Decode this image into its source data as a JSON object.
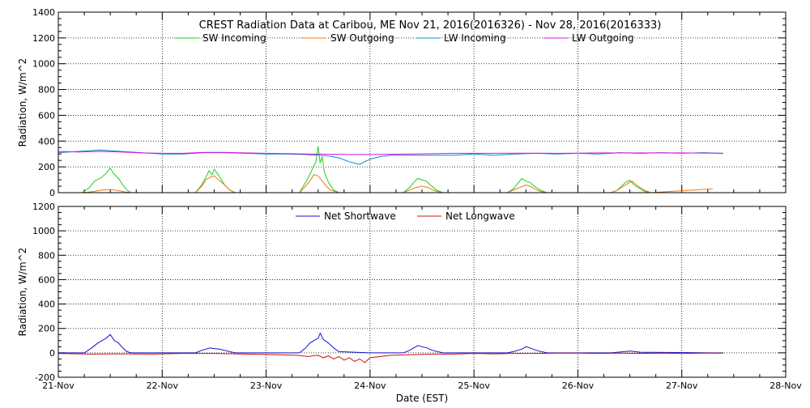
{
  "chart_data": [
    {
      "type": "line",
      "title": "CREST Radiation Data at Caribou, ME   Nov 21, 2016(2016326) - Nov 28, 2016(2016333)",
      "ylabel": "Radiation, W/m^2",
      "xlabel": "",
      "ylim": [
        0,
        1400
      ],
      "yticks": [
        0,
        200,
        400,
        600,
        800,
        1000,
        1200,
        1400
      ],
      "xlim": [
        0,
        7
      ],
      "x_tick_labels": [
        "21-Nov",
        "22-Nov",
        "23-Nov",
        "24-Nov",
        "25-Nov",
        "26-Nov",
        "27-Nov",
        "28-Nov"
      ],
      "grid": true,
      "legend_placement": "top",
      "series": [
        {
          "name": "SW Incoming",
          "color": "#22cc22",
          "x": [
            0.23,
            0.3,
            0.35,
            0.42,
            0.47,
            0.5,
            0.53,
            0.58,
            0.62,
            0.66,
            0.7,
            1.32,
            1.38,
            1.42,
            1.45,
            1.48,
            1.5,
            1.53,
            1.57,
            1.6,
            1.65,
            1.7,
            2.32,
            2.38,
            2.42,
            2.46,
            2.48,
            2.5,
            2.52,
            2.54,
            2.56,
            2.6,
            2.65,
            2.7,
            3.32,
            3.38,
            3.42,
            3.46,
            3.5,
            3.54,
            3.58,
            3.64,
            3.7,
            4.32,
            4.38,
            4.42,
            4.46,
            4.5,
            4.54,
            4.58,
            4.64,
            4.7,
            5.32,
            5.38,
            5.42,
            5.46,
            5.5,
            5.54,
            5.58,
            5.64,
            5.7
          ],
          "y": [
            0,
            40,
            90,
            120,
            160,
            190,
            150,
            110,
            60,
            20,
            0,
            0,
            60,
            120,
            170,
            140,
            180,
            150,
            100,
            60,
            20,
            0,
            0,
            80,
            140,
            210,
            240,
            360,
            230,
            280,
            160,
            80,
            20,
            0,
            0,
            40,
            80,
            110,
            100,
            90,
            60,
            20,
            0,
            0,
            30,
            70,
            110,
            90,
            80,
            50,
            20,
            0,
            0,
            20,
            50,
            80,
            95,
            60,
            40,
            10,
            0
          ]
        },
        {
          "name": "SW Outgoing",
          "color": "#ee7711",
          "x": [
            0.25,
            0.35,
            0.42,
            0.5,
            0.58,
            0.65,
            0.7,
            1.32,
            1.38,
            1.42,
            1.46,
            1.5,
            1.54,
            1.6,
            1.65,
            1.7,
            2.32,
            2.38,
            2.42,
            2.46,
            2.5,
            2.54,
            2.58,
            2.62,
            2.7,
            3.32,
            3.38,
            3.44,
            3.5,
            3.56,
            3.62,
            3.7,
            4.32,
            4.38,
            4.44,
            4.5,
            4.56,
            4.62,
            4.7,
            5.32,
            5.38,
            5.44,
            5.48,
            5.52,
            5.58,
            5.64,
            5.7,
            6.3
          ],
          "y": [
            0,
            10,
            20,
            25,
            15,
            5,
            0,
            0,
            50,
            100,
            120,
            130,
            100,
            60,
            20,
            0,
            0,
            50,
            90,
            140,
            130,
            90,
            50,
            20,
            0,
            0,
            20,
            40,
            50,
            40,
            15,
            0,
            0,
            20,
            40,
            60,
            40,
            15,
            0,
            0,
            20,
            50,
            70,
            90,
            50,
            20,
            0,
            30
          ]
        },
        {
          "name": "LW Incoming",
          "color": "#1188cc",
          "x": [
            0,
            0.2,
            0.4,
            0.6,
            0.8,
            1.0,
            1.2,
            1.4,
            1.6,
            1.8,
            2.0,
            2.2,
            2.4,
            2.5,
            2.6,
            2.7,
            2.8,
            2.9,
            3.0,
            3.1,
            3.2,
            3.4,
            3.6,
            3.8,
            4.0,
            4.2,
            4.4,
            4.6,
            4.8,
            5.0,
            5.2,
            5.4,
            5.6,
            5.8,
            6.0,
            6.2,
            6.4
          ],
          "y": [
            310,
            320,
            330,
            320,
            310,
            300,
            300,
            310,
            310,
            305,
            300,
            300,
            295,
            290,
            285,
            270,
            240,
            220,
            260,
            280,
            290,
            290,
            290,
            290,
            300,
            290,
            300,
            305,
            300,
            305,
            300,
            310,
            305,
            310,
            305,
            310,
            305
          ]
        },
        {
          "name": "LW Outgoing",
          "color": "#dd11dd",
          "x": [
            0,
            0.2,
            0.4,
            0.6,
            0.8,
            1.0,
            1.2,
            1.4,
            1.6,
            1.8,
            2.0,
            2.2,
            2.4,
            2.6,
            2.8,
            3.0,
            3.2,
            3.4,
            3.6,
            3.8,
            4.0,
            4.2,
            4.4,
            4.6,
            4.8,
            5.0,
            5.2,
            5.4,
            5.6,
            5.8,
            6.0,
            6.2,
            6.4
          ],
          "y": [
            320,
            315,
            320,
            315,
            308,
            305,
            305,
            312,
            312,
            308,
            305,
            303,
            300,
            298,
            296,
            296,
            298,
            300,
            302,
            305,
            305,
            305,
            306,
            306,
            305,
            306,
            308,
            308,
            308,
            308,
            308,
            307,
            305
          ]
        }
      ]
    },
    {
      "type": "line",
      "title": "",
      "ylabel": "Radiation, W/m^2",
      "xlabel": "Date (EST)",
      "ylim": [
        -200,
        1200
      ],
      "yticks": [
        -200,
        0,
        200,
        400,
        600,
        800,
        1000,
        1200
      ],
      "xlim": [
        0,
        7
      ],
      "x_tick_labels": [
        "21-Nov",
        "22-Nov",
        "23-Nov",
        "24-Nov",
        "25-Nov",
        "26-Nov",
        "27-Nov",
        "28-Nov"
      ],
      "grid": true,
      "legend_placement": "top",
      "series": [
        {
          "name": "Net Shortwave",
          "color": "#1111cc",
          "x": [
            0,
            0.25,
            0.32,
            0.38,
            0.42,
            0.46,
            0.5,
            0.54,
            0.58,
            0.62,
            0.66,
            0.7,
            1.0,
            1.32,
            1.38,
            1.42,
            1.46,
            1.5,
            1.55,
            1.6,
            1.65,
            1.7,
            2.0,
            2.32,
            2.38,
            2.42,
            2.46,
            2.5,
            2.52,
            2.55,
            2.6,
            2.65,
            2.7,
            3.0,
            3.32,
            3.38,
            3.42,
            3.46,
            3.5,
            3.55,
            3.6,
            3.7,
            4.0,
            4.32,
            4.38,
            4.42,
            4.46,
            4.5,
            4.54,
            4.6,
            4.7,
            5.0,
            5.32,
            5.38,
            5.45,
            5.5,
            5.55,
            5.6,
            6.3,
            6.4
          ],
          "y": [
            0,
            0,
            40,
            80,
            100,
            120,
            150,
            100,
            80,
            40,
            10,
            0,
            0,
            0,
            20,
            30,
            40,
            35,
            30,
            20,
            10,
            0,
            0,
            0,
            40,
            80,
            100,
            120,
            160,
            110,
            80,
            40,
            10,
            0,
            0,
            20,
            40,
            60,
            50,
            40,
            20,
            0,
            0,
            0,
            10,
            20,
            30,
            50,
            40,
            20,
            0,
            0,
            0,
            5,
            10,
            15,
            10,
            5,
            0,
            0
          ]
        },
        {
          "name": "Net Longwave",
          "color": "#cc1111",
          "x": [
            0,
            0.3,
            0.6,
            0.9,
            1.2,
            1.5,
            1.8,
            2.1,
            2.3,
            2.4,
            2.5,
            2.55,
            2.6,
            2.65,
            2.7,
            2.75,
            2.8,
            2.85,
            2.9,
            2.95,
            3.0,
            3.1,
            3.2,
            3.4,
            3.6,
            3.8,
            4.0,
            4.2,
            4.4,
            4.6,
            4.8,
            5.0,
            5.2,
            5.4,
            5.6,
            5.8,
            6.0,
            6.2,
            6.4
          ],
          "y": [
            -5,
            -10,
            -8,
            -10,
            -5,
            -5,
            -10,
            -15,
            -20,
            -30,
            -20,
            -40,
            -25,
            -50,
            -30,
            -60,
            -40,
            -70,
            -50,
            -80,
            -40,
            -30,
            -20,
            -15,
            -10,
            -10,
            -5,
            -8,
            -5,
            -5,
            -3,
            -3,
            -5,
            -2,
            -5,
            -3,
            -5,
            -2,
            -3
          ]
        }
      ]
    }
  ]
}
